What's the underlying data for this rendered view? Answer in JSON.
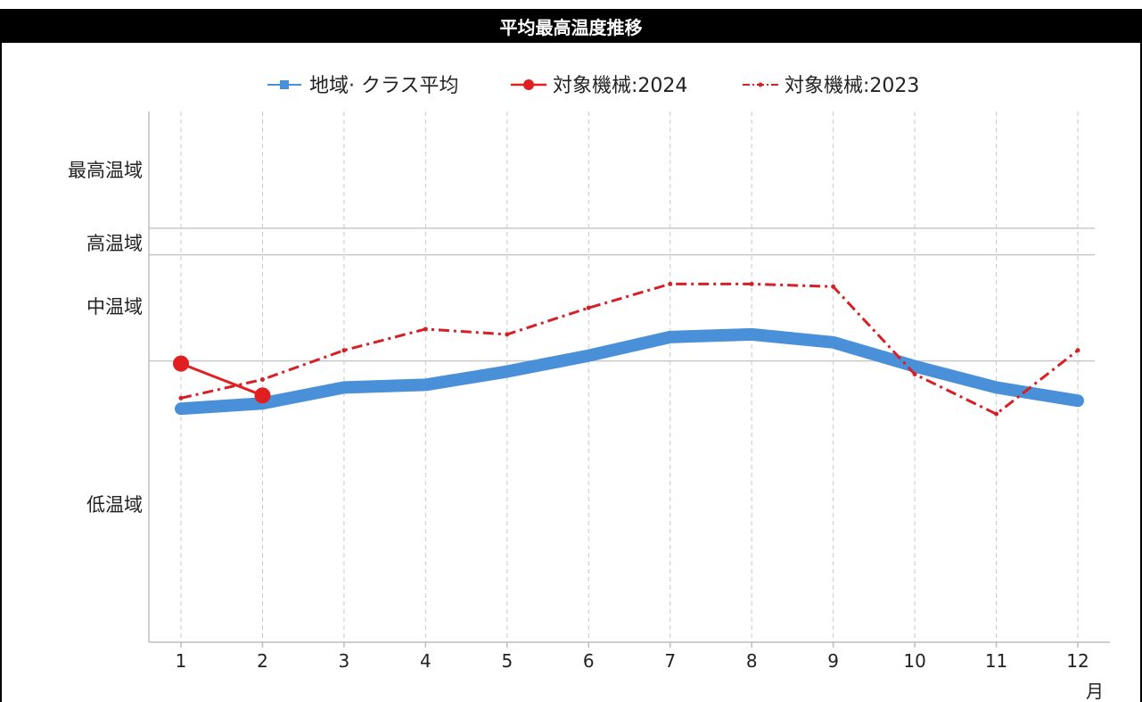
{
  "chart_data": {
    "type": "line",
    "title": "平均最高温度推移",
    "xlabel": "月",
    "x": [
      1,
      2,
      3,
      4,
      5,
      6,
      7,
      8,
      9,
      10,
      11,
      12
    ],
    "tick_labels": [
      "1",
      "2",
      "3",
      "4",
      "5",
      "6",
      "7",
      "8",
      "9",
      "10",
      "11",
      "12"
    ],
    "y_band_labels": [
      "最高温域",
      "高温域",
      "中温域",
      "低温域"
    ],
    "series": [
      {
        "name": "地域· クラス平均",
        "color": "#4a90d9",
        "style": "solid-thick",
        "marker": "square",
        "values": [
          44,
          45,
          48,
          48.5,
          51,
          54,
          57.5,
          58,
          56.5,
          52,
          48,
          45.5
        ]
      },
      {
        "name": "対象機械:2024",
        "color": "#e02020",
        "style": "solid",
        "marker": "circle",
        "values": [
          52.5,
          46.5,
          null,
          null,
          null,
          null,
          null,
          null,
          null,
          null,
          null,
          null
        ]
      },
      {
        "name": "対象機械:2023",
        "color": "#d42026",
        "style": "dash-dot",
        "marker": "dot",
        "values": [
          46,
          49.5,
          55,
          59,
          58,
          63,
          67.5,
          67.5,
          67,
          50.5,
          43,
          55
        ]
      }
    ],
    "ylim": [
      0,
      100
    ],
    "grid": {
      "vertical": true,
      "horizontal_thresholds": [
        53,
        73,
        78
      ]
    },
    "legend": "top"
  }
}
